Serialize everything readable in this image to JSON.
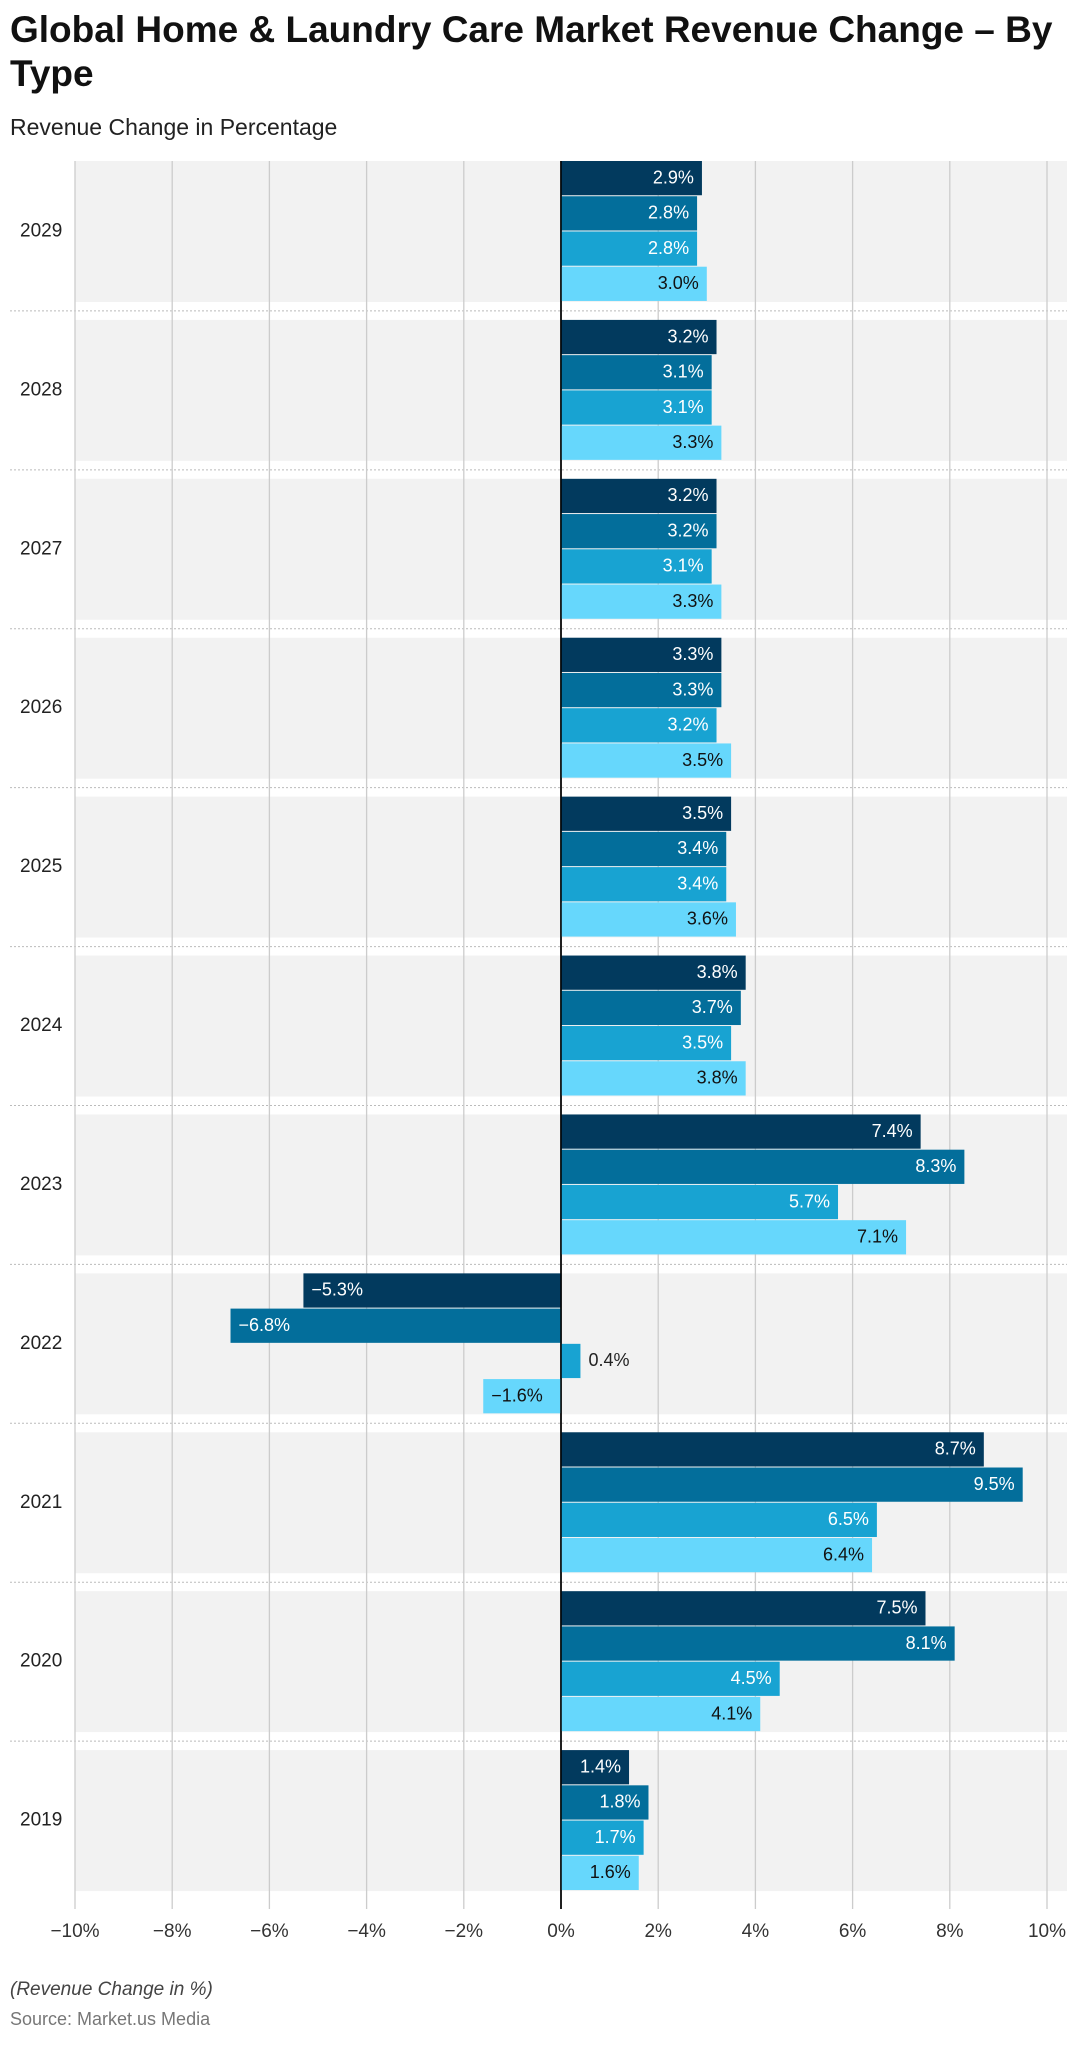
{
  "chart_data": {
    "type": "hbar",
    "title": "Global Home & Laundry Care Market Revenue Change – By Type",
    "subtitle": "Revenue Change in Percentage",
    "footnote": "(Revenue Change in %)",
    "source": "Source: Market.us Media",
    "categories": [
      "2029",
      "2028",
      "2027",
      "2026",
      "2025",
      "2024",
      "2023",
      "2022",
      "2021",
      "2020",
      "2019"
    ],
    "series": [
      {
        "color": "#023a5e",
        "values": [
          2.9,
          3.2,
          3.2,
          3.3,
          3.5,
          3.8,
          7.4,
          -5.3,
          8.7,
          7.5,
          1.4
        ],
        "value_labels": [
          "2.9%",
          "3.2%",
          "3.2%",
          "3.3%",
          "3.5%",
          "3.8%",
          "7.4%",
          "−5.3%",
          "8.7%",
          "7.5%",
          "1.4%"
        ]
      },
      {
        "color": "#036e9b",
        "values": [
          2.8,
          3.1,
          3.2,
          3.3,
          3.4,
          3.7,
          8.3,
          -6.8,
          9.5,
          8.1,
          1.8
        ],
        "value_labels": [
          "2.8%",
          "3.1%",
          "3.2%",
          "3.3%",
          "3.4%",
          "3.7%",
          "8.3%",
          "−6.8%",
          "9.5%",
          "8.1%",
          "1.8%"
        ]
      },
      {
        "color": "#18a3d2",
        "values": [
          2.8,
          3.1,
          3.1,
          3.2,
          3.4,
          3.5,
          5.7,
          0.4,
          6.5,
          4.5,
          1.7
        ],
        "value_labels": [
          "2.8%",
          "3.1%",
          "3.1%",
          "3.2%",
          "3.4%",
          "3.5%",
          "5.7%",
          "0.4%",
          "6.5%",
          "4.5%",
          "1.7%"
        ]
      },
      {
        "color": "#66d7fc",
        "values": [
          3.0,
          3.3,
          3.3,
          3.5,
          3.6,
          3.8,
          7.1,
          -1.6,
          6.4,
          4.1,
          1.6
        ],
        "value_labels": [
          "3.0%",
          "3.3%",
          "3.3%",
          "3.5%",
          "3.6%",
          "3.8%",
          "7.1%",
          "−1.6%",
          "6.4%",
          "4.1%",
          "1.6%"
        ]
      }
    ],
    "xlim": [
      -10,
      10
    ],
    "xticks": [
      {
        "value": -10,
        "label": "−10%"
      },
      {
        "value": -8,
        "label": "−8%"
      },
      {
        "value": -6,
        "label": "−6%"
      },
      {
        "value": -4,
        "label": "−4%"
      },
      {
        "value": -2,
        "label": "−2%"
      },
      {
        "value": 0,
        "label": "0%"
      },
      {
        "value": 2,
        "label": "2%"
      },
      {
        "value": 4,
        "label": "4%"
      },
      {
        "value": 6,
        "label": "6%"
      },
      {
        "value": 8,
        "label": "8%"
      },
      {
        "value": 10,
        "label": "10%"
      }
    ],
    "grid": true
  }
}
